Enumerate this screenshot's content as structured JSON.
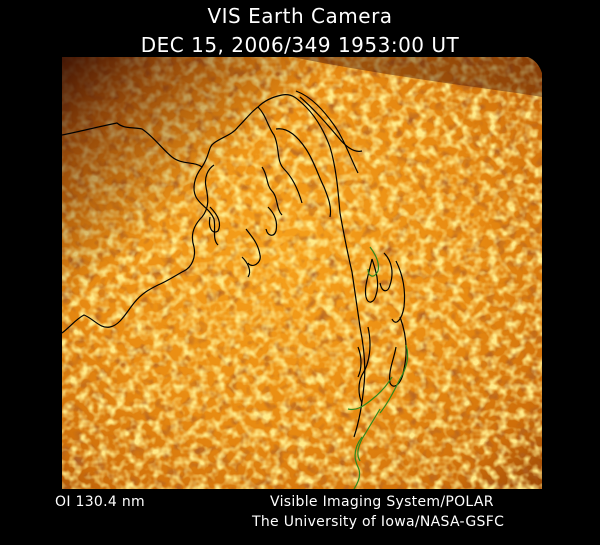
{
  "header": {
    "title": "VIS Earth Camera",
    "timestamp": "DEC 15, 2006/349 1953:00 UT"
  },
  "footer": {
    "wavelength": "OI  130.4 nm",
    "instrument": "Visible Imaging System/POLAR",
    "credit": "The University of Iowa/NASA-GSFC"
  },
  "colors": {
    "background": "#000000",
    "glow_bright": "#ffd23a",
    "glow_mid": "#e58a10",
    "glow_dark": "#5a1c04",
    "coastline": "#000000",
    "coastline_green": "#2f8a1c"
  }
}
